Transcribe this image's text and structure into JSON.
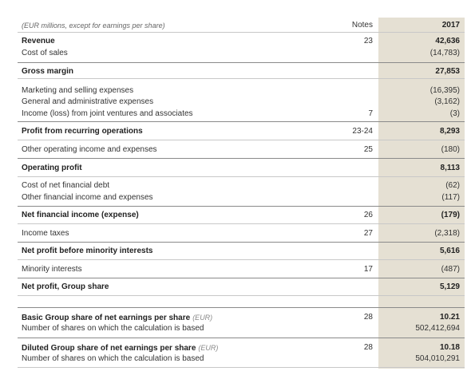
{
  "header": {
    "caption": "(EUR millions, except for earnings per share)",
    "notes": "Notes",
    "year": "2017"
  },
  "rows": [
    {
      "label": "Revenue",
      "notes": "23",
      "value": "42,636"
    },
    {
      "label": "Cost of sales",
      "value": "(14,783)"
    },
    {
      "label": "Gross margin",
      "value": "27,853"
    },
    {
      "label": "Marketing and selling expenses",
      "value": "(16,395)"
    },
    {
      "label": "General and administrative expenses",
      "value": "(3,162)"
    },
    {
      "label": "Income (loss) from joint ventures and associates",
      "notes": "7",
      "value": "(3)"
    },
    {
      "label": "Profit from recurring operations",
      "notes": "23-24",
      "value": "8,293"
    },
    {
      "label": "Other operating income and expenses",
      "notes": "25",
      "value": "(180)"
    },
    {
      "label": "Operating profit",
      "value": "8,113"
    },
    {
      "label": "Cost of net financial debt",
      "value": "(62)"
    },
    {
      "label": "Other financial income and expenses",
      "value": "(117)"
    },
    {
      "label": "Net financial income (expense)",
      "notes": "26",
      "value": "(179)"
    },
    {
      "label": "Income taxes",
      "notes": "27",
      "value": "(2,318)"
    },
    {
      "label": "Net profit before minority interests",
      "value": "5,616"
    },
    {
      "label": "Minority interests",
      "notes": "17",
      "value": "(487)"
    },
    {
      "label": "Net profit, Group share",
      "value": "5,129"
    },
    {
      "label": "Basic Group share of net earnings per share",
      "unit": "(EUR)",
      "notes": "28",
      "value": "10.21"
    },
    {
      "label": "Number of shares on which the calculation is based",
      "value": "502,412,694"
    },
    {
      "label": "Diluted Group share of net earnings per share",
      "unit": "(EUR)",
      "notes": "28",
      "value": "10.18"
    },
    {
      "label": "Number of shares on which the calculation is based",
      "value": "504,010,291"
    }
  ]
}
